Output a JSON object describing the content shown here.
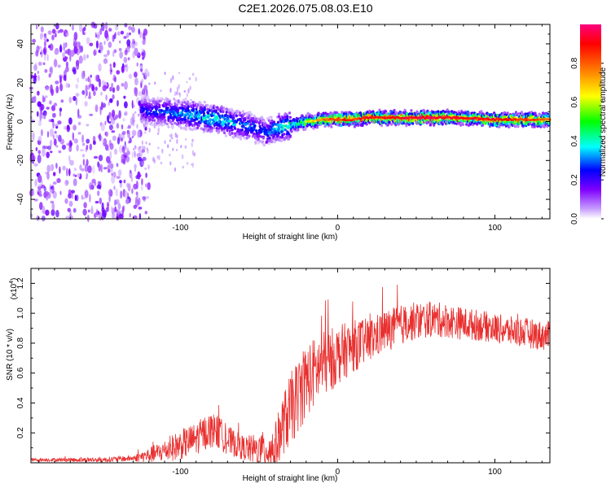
{
  "title": "C2E1.2026.075.08.03.E10",
  "chart_data": [
    {
      "type": "heatmap",
      "name": "spectrogram",
      "xlabel": "Height of straight line (km)",
      "ylabel": "Frequency (Hz)",
      "xlim": [
        -195,
        135
      ],
      "ylim": [
        -50,
        50
      ],
      "x_ticks": [
        -100,
        0,
        100
      ],
      "y_ticks": [
        -40,
        -20,
        0,
        20,
        40
      ],
      "colorbar": {
        "label": "Normalized spectral amplitude",
        "range": [
          0,
          1
        ],
        "ticks": [
          0.0,
          0.2,
          0.4,
          0.6,
          0.8
        ],
        "tick_labels": [
          "0.0",
          "0.2",
          "0.4",
          "0.6",
          "0.8"
        ],
        "colors": [
          "#ffffff",
          "#c8a0ff",
          "#7f00ff",
          "#0000ff",
          "#00ffff",
          "#00ff00",
          "#ffff00",
          "#ff8000",
          "#ff0000",
          "#ff0080"
        ]
      },
      "noise_region": {
        "x_start": -195,
        "x_end": -125,
        "amplitude": 0.15
      },
      "ridge": {
        "x": [
          -125,
          -110,
          -100,
          -90,
          -80,
          -70,
          -60,
          -50,
          -45,
          -40,
          -30,
          -20,
          -10,
          0,
          10,
          20,
          40,
          60,
          80,
          100,
          120,
          135
        ],
        "freq": [
          6,
          5,
          4,
          3,
          2,
          0,
          -2,
          -4,
          -6,
          -3,
          -2,
          0,
          1,
          1,
          1,
          2,
          2,
          2,
          2,
          1,
          1,
          1
        ],
        "amplitude": [
          0.25,
          0.3,
          0.35,
          0.4,
          0.45,
          0.4,
          0.35,
          0.3,
          0.3,
          0.4,
          0.5,
          0.6,
          0.75,
          0.85,
          0.85,
          0.9,
          0.9,
          0.95,
          0.9,
          0.9,
          0.85,
          0.8
        ]
      }
    },
    {
      "type": "line",
      "name": "snr",
      "xlabel": "Height of straight line (km)",
      "ylabel": "SNR (10 * v/v)",
      "exponent_label": "(x10",
      "exponent": "4",
      "exponent_close": ")",
      "xlim": [
        -195,
        135
      ],
      "ylim": [
        0,
        1.3
      ],
      "x_ticks": [
        -100,
        0,
        100
      ],
      "y_ticks": [
        0.2,
        0.4,
        0.6,
        0.8,
        1.0,
        1.2
      ],
      "y_tick_labels": [
        "0.2",
        "0.4",
        "0.6",
        "0.8",
        "1.0",
        "1.2"
      ],
      "color": "#e8302f",
      "trend": {
        "x": [
          -195,
          -150,
          -130,
          -120,
          -110,
          -100,
          -90,
          -85,
          -80,
          -75,
          -70,
          -60,
          -50,
          -40,
          -35,
          -30,
          -25,
          -20,
          -10,
          0,
          10,
          20,
          30,
          40,
          50,
          60,
          70,
          80,
          90,
          100,
          110,
          120,
          130,
          135
        ],
        "y": [
          0.02,
          0.02,
          0.03,
          0.05,
          0.08,
          0.12,
          0.16,
          0.2,
          0.22,
          0.2,
          0.15,
          0.1,
          0.08,
          0.1,
          0.25,
          0.35,
          0.45,
          0.55,
          0.65,
          0.72,
          0.78,
          0.82,
          0.88,
          0.92,
          0.95,
          0.96,
          0.95,
          0.93,
          0.92,
          0.9,
          0.88,
          0.87,
          0.85,
          0.85
        ]
      },
      "noise": {
        "x": [
          -195,
          -130,
          -120,
          -100,
          -80,
          -60,
          -40,
          -30,
          -20,
          0,
          20,
          60,
          100,
          135
        ],
        "y": [
          0.01,
          0.02,
          0.05,
          0.1,
          0.12,
          0.08,
          0.15,
          0.25,
          0.25,
          0.2,
          0.15,
          0.12,
          0.1,
          0.1
        ]
      }
    }
  ]
}
